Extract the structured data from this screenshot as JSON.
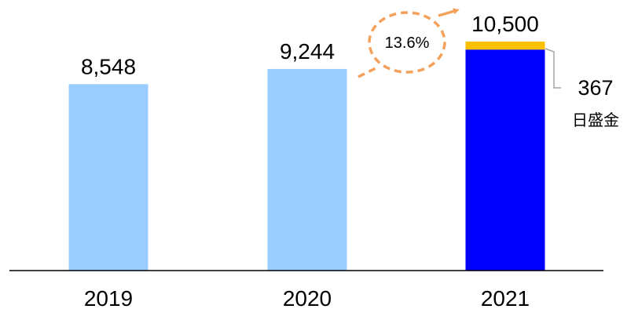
{
  "chart_data": {
    "type": "bar",
    "categories": [
      "2019",
      "2020",
      "2021"
    ],
    "values": [
      8548,
      9244,
      10500
    ],
    "value_labels": [
      "8,548",
      "9,244",
      "10,500"
    ],
    "ylim": [
      0,
      10500
    ],
    "grid": false,
    "legend": "none",
    "segment": {
      "category": "2021",
      "value": 367,
      "label": "367",
      "name": "日盛金",
      "color": "#FFC000"
    },
    "growth": {
      "from": "2020",
      "to": "2021",
      "label": "13.6%",
      "color": "#F4A25B"
    },
    "colors": {
      "light_bar": "#99CCFF",
      "dark_bar": "#0000FF",
      "axis": "#000000",
      "leader": "#A6A6A6"
    }
  }
}
